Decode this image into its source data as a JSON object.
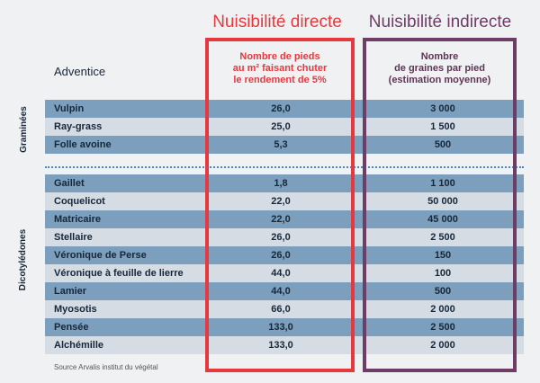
{
  "headers": {
    "direct_title": "Nuisibilité directe",
    "indirect_title": "Nuisibilité indirecte",
    "adventice": "Adventice",
    "direct_col_lines": [
      "Nombre de pieds",
      "au m² faisant chuter",
      "le rendement de 5%"
    ],
    "indirect_col_lines": [
      "Nombre",
      "de graines par pied",
      "(estimation moyenne)"
    ]
  },
  "groups": {
    "graminees": "Graminées",
    "dicotyledones": "Dicotylédones"
  },
  "rows_graminees": [
    {
      "name": "Vulpin",
      "direct": "26,0",
      "indirect": "3 000"
    },
    {
      "name": "Ray-grass",
      "direct": "25,0",
      "indirect": "1 500"
    },
    {
      "name": "Folle avoine",
      "direct": "5,3",
      "indirect": "500"
    }
  ],
  "rows_dicotyledones": [
    {
      "name": "Gaillet",
      "direct": "1,8",
      "indirect": "1 100"
    },
    {
      "name": "Coquelicot",
      "direct": "22,0",
      "indirect": "50 000"
    },
    {
      "name": "Matricaire",
      "direct": "22,0",
      "indirect": "45 000"
    },
    {
      "name": "Stellaire",
      "direct": "26,0",
      "indirect": "2 500"
    },
    {
      "name": "Véronique de Perse",
      "direct": "26,0",
      "indirect": "150"
    },
    {
      "name": "Véronique à feuille de lierre",
      "direct": "44,0",
      "indirect": "100"
    },
    {
      "name": "Lamier",
      "direct": "44,0",
      "indirect": "500"
    },
    {
      "name": "Myosotis",
      "direct": "66,0",
      "indirect": "2 000"
    },
    {
      "name": "Pensée",
      "direct": "133,0",
      "indirect": "2 500"
    },
    {
      "name": "Alchémille",
      "direct": "133,0",
      "indirect": "2 000"
    }
  ],
  "source": "Source Arvalis institut du végétal",
  "colors": {
    "direct": "#e5393f",
    "indirect": "#6e3d66",
    "row_dark": "#7b9fbc",
    "row_light": "#d5dce4"
  }
}
